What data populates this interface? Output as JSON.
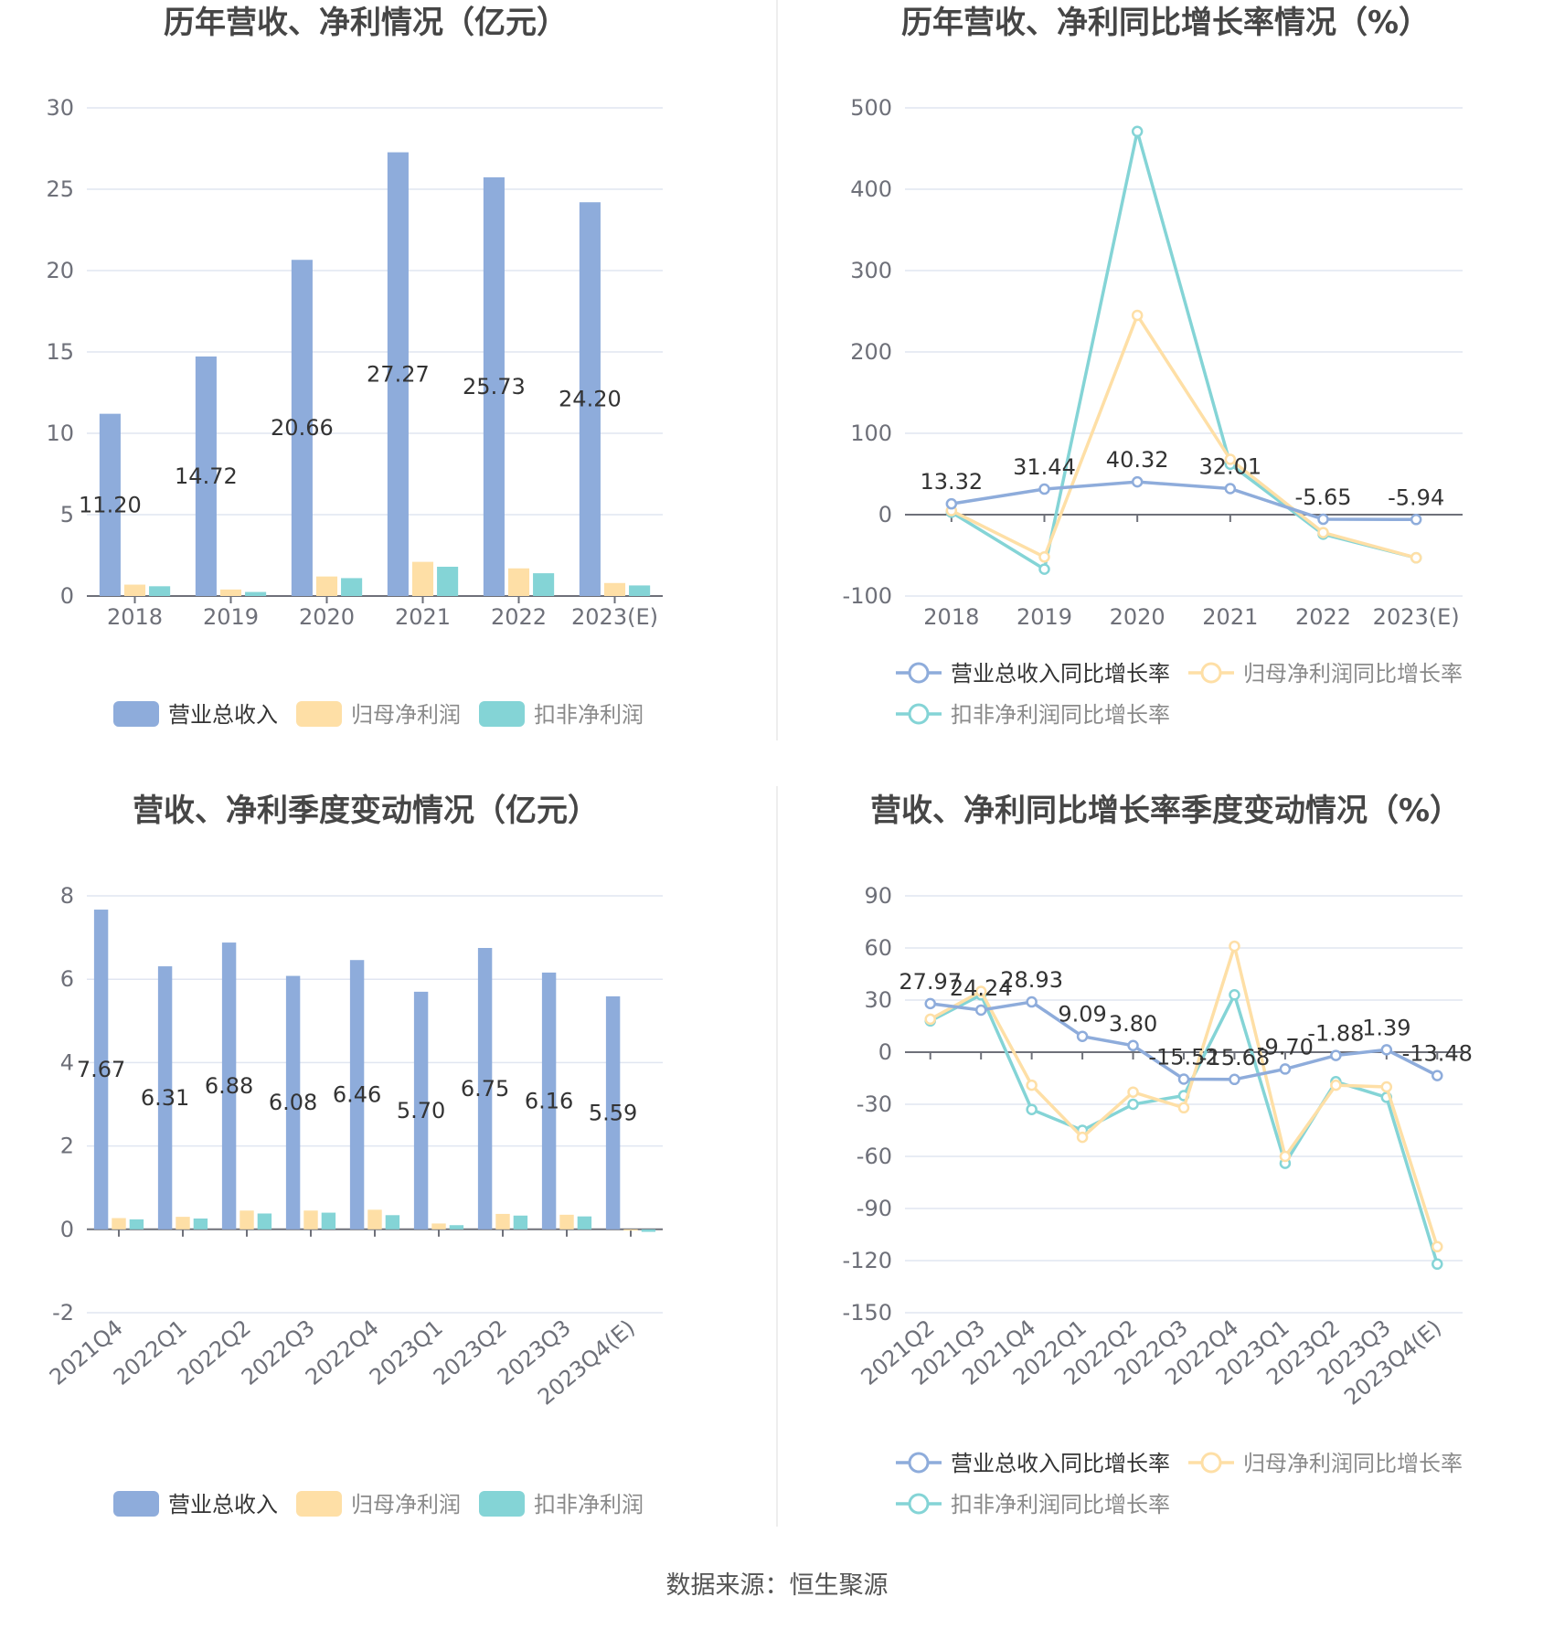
{
  "colors": {
    "revenue": "#8eacdb",
    "net_profit": "#fedfa6",
    "deducted_profit": "#84d4d6",
    "grid": "#e0e6f1",
    "axis": "#6e7079"
  },
  "source": "数据来源：恒生聚源",
  "chart_data": [
    {
      "type": "bar",
      "title": "历年营收、净利情况（亿元）",
      "categories": [
        "2018",
        "2019",
        "2020",
        "2021",
        "2022",
        "2023(E)"
      ],
      "ylim": [
        0,
        30
      ],
      "yticks": [
        0,
        5,
        10,
        15,
        20,
        25,
        30
      ],
      "series": [
        {
          "name": "营业总收入",
          "values": [
            11.2,
            14.72,
            20.66,
            27.27,
            25.73,
            24.2
          ],
          "labels": [
            "11.20",
            "14.72",
            "20.66",
            "27.27",
            "25.73",
            "24.20"
          ]
        },
        {
          "name": "归母净利润",
          "values": [
            0.7,
            0.4,
            1.2,
            2.1,
            1.7,
            0.8
          ]
        },
        {
          "name": "扣非净利润",
          "values": [
            0.6,
            0.25,
            1.1,
            1.8,
            1.4,
            0.65
          ]
        }
      ],
      "legend": "bottom",
      "grid": true
    },
    {
      "type": "line",
      "title": "历年营收、净利同比增长率情况（%）",
      "categories": [
        "2018",
        "2019",
        "2020",
        "2021",
        "2022",
        "2023(E)"
      ],
      "ylim": [
        -100,
        500
      ],
      "yticks": [
        -100,
        0,
        100,
        200,
        300,
        400,
        500
      ],
      "series": [
        {
          "name": "营业总收入同比增长率",
          "values": [
            13.32,
            31.44,
            40.32,
            32.01,
            -5.65,
            -5.94
          ],
          "labels": [
            "13.32",
            "31.44",
            "40.32",
            "32.01",
            "-5.65",
            "-5.94"
          ]
        },
        {
          "name": "归母净利润同比增长率",
          "values": [
            5,
            -52,
            245,
            68,
            -22,
            -53
          ]
        },
        {
          "name": "扣非净利润同比增长率",
          "values": [
            3,
            -67,
            471,
            62,
            -24,
            -53
          ]
        }
      ],
      "legend": "bottom",
      "grid": true
    },
    {
      "type": "bar",
      "title": "营收、净利季度变动情况（亿元）",
      "categories": [
        "2021Q4",
        "2022Q1",
        "2022Q2",
        "2022Q3",
        "2022Q4",
        "2023Q1",
        "2023Q2",
        "2023Q3",
        "2023Q4(E)"
      ],
      "ylim": [
        -2,
        8
      ],
      "yticks": [
        -2,
        0,
        2,
        4,
        6,
        8
      ],
      "series": [
        {
          "name": "营业总收入",
          "values": [
            7.67,
            6.31,
            6.88,
            6.08,
            6.46,
            5.7,
            6.75,
            6.16,
            5.59
          ],
          "labels": [
            "7.67",
            "6.31",
            "6.88",
            "6.08",
            "6.46",
            "5.70",
            "6.75",
            "6.16",
            "5.59"
          ]
        },
        {
          "name": "归母净利润",
          "values": [
            0.27,
            0.3,
            0.45,
            0.45,
            0.47,
            0.14,
            0.37,
            0.35,
            -0.03
          ]
        },
        {
          "name": "扣非净利润",
          "values": [
            0.24,
            0.26,
            0.38,
            0.4,
            0.34,
            0.1,
            0.33,
            0.31,
            -0.06
          ]
        }
      ],
      "legend": "bottom",
      "grid": true
    },
    {
      "type": "line",
      "title": "营收、净利同比增长率季度变动情况（%）",
      "categories": [
        "2021Q2",
        "2021Q3",
        "2021Q4",
        "2022Q1",
        "2022Q2",
        "2022Q3",
        "2022Q4",
        "2023Q1",
        "2023Q2",
        "2023Q3",
        "2023Q4(E)"
      ],
      "ylim": [
        -150,
        90
      ],
      "yticks": [
        -150,
        -120,
        -90,
        -60,
        -30,
        0,
        30,
        60,
        90
      ],
      "series": [
        {
          "name": "营业总收入同比增长率",
          "values": [
            27.97,
            24.24,
            28.93,
            9.09,
            3.8,
            -15.52,
            -15.68,
            -9.7,
            -1.88,
            1.39,
            -13.48
          ],
          "labels": [
            "27.97",
            "24.24",
            "28.93",
            "9.09",
            "3.80",
            "-15.52",
            "-15.68",
            "-9.70",
            "-1.88",
            "1.39",
            "-13.48"
          ]
        },
        {
          "name": "归母净利润同比增长率",
          "values": [
            19,
            35,
            -19,
            -49,
            -23,
            -32,
            61,
            -60,
            -19,
            -20,
            -112
          ]
        },
        {
          "name": "扣非净利润同比增长率",
          "values": [
            18,
            33,
            -33,
            -45,
            -30,
            -25,
            33,
            -64,
            -17,
            -26,
            -122
          ]
        }
      ],
      "legend": "bottom",
      "grid": true
    }
  ]
}
